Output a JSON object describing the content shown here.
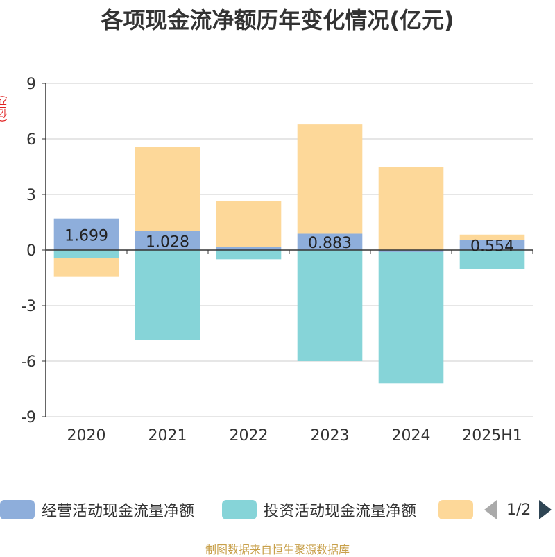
{
  "chart_data": {
    "type": "bar",
    "stacked": true,
    "title": "各项现金流净额历年变化情况(亿元)",
    "ylabel": "(亿元)",
    "categories": [
      "2020",
      "2021",
      "2022",
      "2023",
      "2024",
      "2025H1"
    ],
    "ylim": [
      -9,
      9
    ],
    "yticks": [
      9,
      6,
      3,
      0,
      -3,
      -6,
      -9
    ],
    "grid": true,
    "legend_position": "bottom",
    "legend_page": "1/2",
    "series": [
      {
        "name": "经营活动现金流量净额",
        "color": "#8eaedb",
        "values": [
          1.699,
          1.028,
          0.179,
          0.883,
          -0.111,
          0.554
        ],
        "labels": [
          "1.699",
          "1.028",
          "",
          "0.883",
          "",
          "0.554"
        ]
      },
      {
        "name": "投资活动现金流量净额",
        "color": "#86d4d8",
        "values": [
          -0.45,
          -4.85,
          -0.5,
          -6.0,
          -7.1,
          -1.05
        ],
        "labels": []
      },
      {
        "name": "",
        "color": "#fdd899",
        "values": [
          -1.0,
          4.55,
          2.45,
          5.9,
          4.5,
          0.28
        ],
        "labels": []
      }
    ]
  },
  "legend": {
    "item1": "经营活动现金流量净额",
    "item2": "投资活动现金流量净额",
    "page": "1/2"
  },
  "source": "制图数据来自恒生聚源数据库"
}
